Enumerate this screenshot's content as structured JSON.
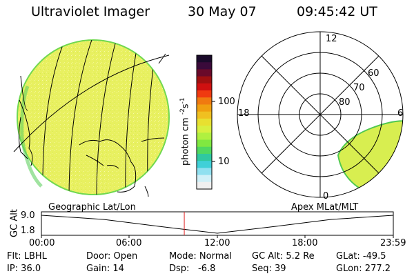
{
  "header": {
    "instrument": "Ultraviolet Imager",
    "date": "30 May 07",
    "time": "09:45:42 UT"
  },
  "colorbar": {
    "unit_text": "photon cm",
    "unit_sup1": "-2",
    "unit_mid": "s",
    "unit_sup2": "-1",
    "tick_labels": [
      "100",
      "10"
    ],
    "colors": [
      "#1a0a2a",
      "#3a0a3a",
      "#6a0a2a",
      "#a01010",
      "#d01010",
      "#f03a10",
      "#f07a10",
      "#f0a010",
      "#f0c020",
      "#e8e030",
      "#d8f040",
      "#b0f040",
      "#80e840",
      "#50d860",
      "#30c8a0",
      "#40d0d8",
      "#90e0f0",
      "#d0f0f8",
      "#f0f0f0"
    ]
  },
  "polar": {
    "mlt_labels": {
      "top": "12",
      "left": "18",
      "right": "6",
      "bottom": "0"
    },
    "lat_labels": [
      "60",
      "70",
      "80"
    ]
  },
  "map": {
    "panel_label": "Geographic Lat/Lon",
    "fill_color": "#e8f060"
  },
  "polar_panel_label": "Apex MLat/MLT",
  "timeline": {
    "ylabel": "GC Alt",
    "yticks": [
      "9.0",
      "1.8"
    ],
    "xticks": [
      "00:00",
      "06:00",
      "12:00",
      "18:00",
      "23:59"
    ],
    "current_time_fraction": 0.406
  },
  "info": {
    "row1": [
      "Flt: LBHL",
      "Door: Open",
      "Mode: Normal",
      "GC Alt: 5.2 Re",
      "GLat: -49.5"
    ],
    "row2": [
      "IP: 36.0",
      "Gain: 14",
      "Dsp:",
      "-6.8",
      "Seq: 39",
      "GLon: 277.2"
    ]
  }
}
